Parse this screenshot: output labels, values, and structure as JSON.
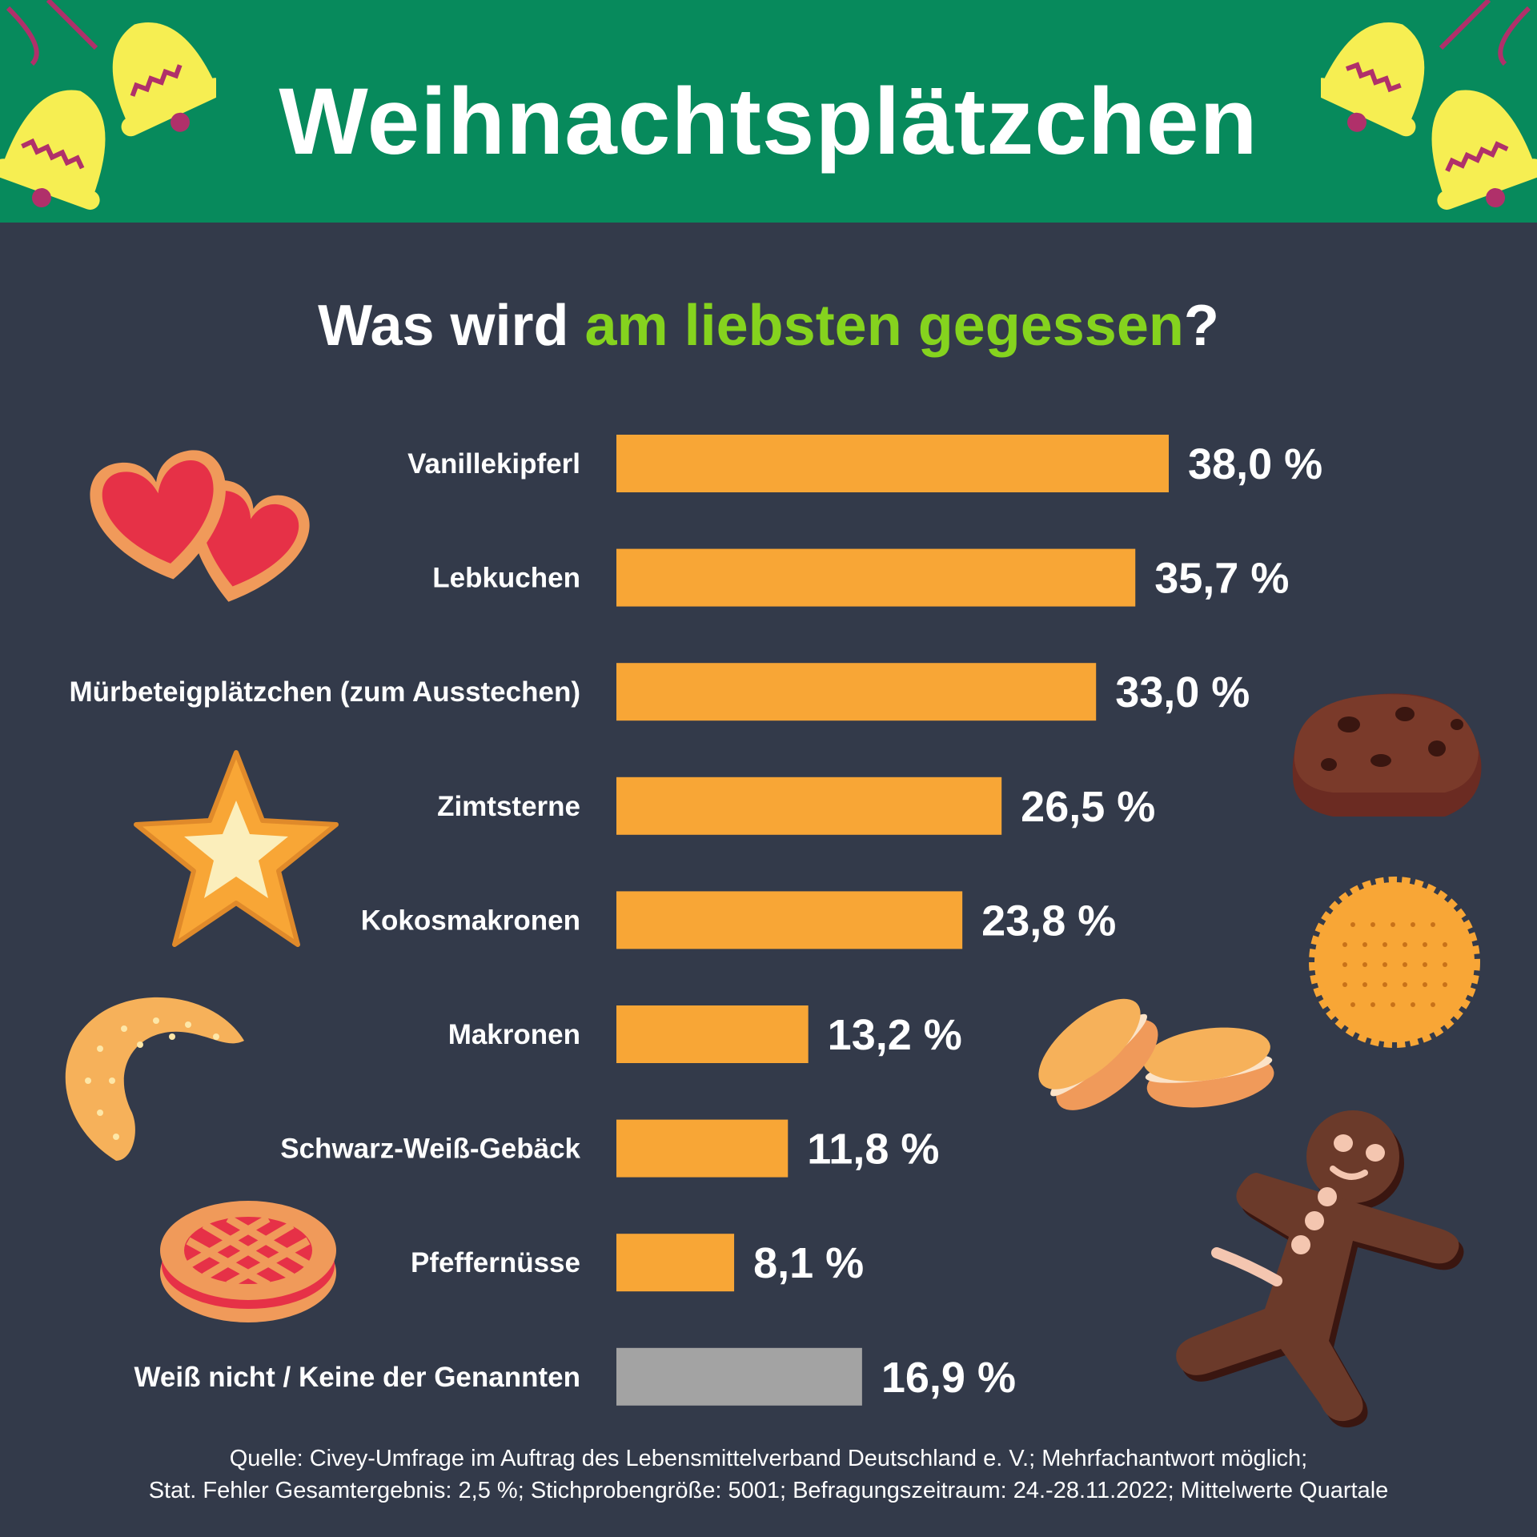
{
  "header": {
    "title": "Weihnachtsplätzchen"
  },
  "subtitle": {
    "part1": "Was wird ",
    "accent": "am liebsten gegessen",
    "part2": "?"
  },
  "colors": {
    "header_bg": "#078a5c",
    "background": "#333a4a",
    "bar": "#f8a636",
    "bar_other": "#a3a3a3",
    "accent_text": "#85d31e"
  },
  "chart_data": {
    "type": "bar",
    "orientation": "horizontal",
    "title": "Was wird am liebsten gegessen?",
    "categories": [
      "Vanillekipferl",
      "Lebkuchen",
      "Mürbeteigplätzchen (zum Ausstechen)",
      "Zimtsterne",
      "Kokosmakronen",
      "Makronen",
      "Schwarz-Weiß-Gebäck",
      "Pfeffernüsse",
      "Weiß nicht / Keine der Genannten"
    ],
    "values": [
      38.0,
      35.7,
      33.0,
      26.5,
      23.8,
      13.2,
      11.8,
      8.1,
      16.9
    ],
    "value_labels": [
      "38,0 %",
      "35,7 %",
      "33,0 %",
      "26,5 %",
      "23,8 %",
      "13,2 %",
      "11,8 %",
      "8,1 %",
      "16,9 %"
    ],
    "bar_colors": [
      "#f8a636",
      "#f8a636",
      "#f8a636",
      "#f8a636",
      "#f8a636",
      "#f8a636",
      "#f8a636",
      "#f8a636",
      "#a3a3a3"
    ],
    "unit": "%",
    "xlim": [
      0,
      38
    ],
    "grid": false,
    "legend": "none"
  },
  "footer": {
    "line1": "Quelle: Civey-Umfrage im Auftrag des Lebensmittelverband Deutschland e. V.; Mehrfachantwort möglich;",
    "line2": "Stat. Fehler Gesamtergebnis: 2,5 %; Stichprobengröße: 5001; Befragungszeitraum: 24.-28.11.2022; Mittelwerte Quartale"
  },
  "decorations": [
    "bells-left-icon",
    "bells-right-icon",
    "heart-cookies-icon",
    "star-cookie-icon",
    "crescent-cookie-icon",
    "linzer-cookie-icon",
    "chocolate-cookie-icon",
    "round-biscuit-icon",
    "macarons-icon",
    "gingerbread-man-icon"
  ]
}
